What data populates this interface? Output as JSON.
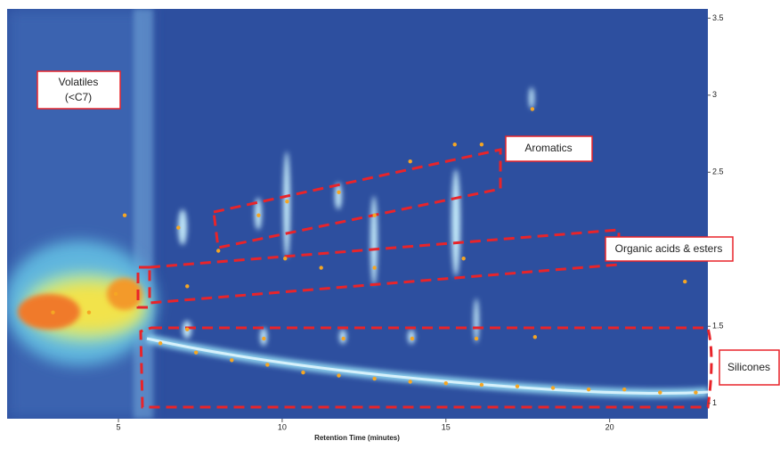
{
  "chart_data": {
    "type": "scatter",
    "x_label": "Retention Time (minutes)",
    "xlim": [
      1.6,
      23.0
    ],
    "xticks": [
      5,
      10,
      15,
      20
    ],
    "ylim": [
      0.9,
      3.56
    ],
    "yticks": [
      1,
      1.5,
      2.5,
      3,
      3.5
    ],
    "color": "#f5a623",
    "x": [
      6.28,
      7.37,
      8.46,
      9.55,
      10.64,
      11.73,
      12.82,
      13.91,
      15.0,
      16.09,
      17.18,
      18.27,
      19.36,
      20.45,
      21.54,
      22.63,
      6.83,
      8.05,
      9.28,
      10.15,
      11.73,
      12.82,
      13.91,
      15.27,
      16.09,
      17.64,
      10.09,
      11.19,
      12.82,
      15.54,
      7.1,
      5.19,
      4.92,
      3.0,
      4.1,
      7.1,
      9.44,
      11.87,
      13.97,
      15.93,
      17.72,
      22.3
    ],
    "values": [
      1.39,
      1.33,
      1.28,
      1.25,
      1.2,
      1.18,
      1.16,
      1.14,
      1.13,
      1.12,
      1.11,
      1.1,
      1.09,
      1.09,
      1.07,
      1.07,
      2.14,
      1.99,
      2.22,
      2.31,
      2.37,
      2.22,
      2.57,
      2.68,
      2.68,
      2.91,
      1.94,
      1.88,
      1.88,
      1.94,
      1.76,
      2.22,
      1.71,
      1.59,
      1.59,
      1.48,
      1.42,
      1.42,
      1.42,
      1.42,
      1.43,
      1.79
    ],
    "annotations": [
      {
        "lines": [
          "Volatiles",
          "(<C7)"
        ]
      },
      {
        "lines": [
          "Aromatics"
        ]
      },
      {
        "lines": [
          "Organic acids & esters"
        ]
      },
      {
        "lines": [
          "Silicones"
        ]
      }
    ]
  }
}
